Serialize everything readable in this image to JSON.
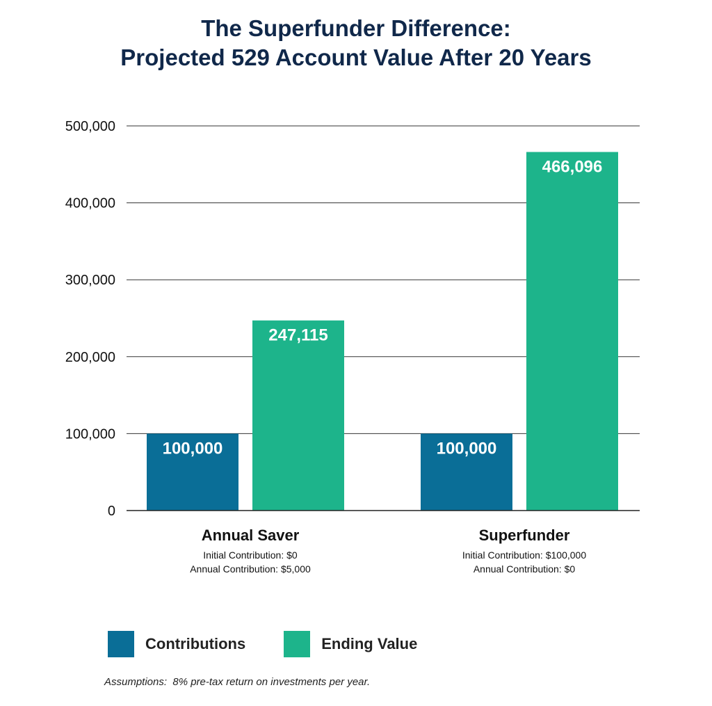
{
  "title_line1": "The Superfunder Difference:",
  "title_line2": "Projected 529 Account Value After 20 Years",
  "chart_data": {
    "type": "bar",
    "categories": [
      "Annual Saver",
      "Superfunder"
    ],
    "category_details": [
      [
        "Initial Contribution: $0",
        "Annual Contribution: $5,000"
      ],
      [
        "Initial Contribution: $100,000",
        "Annual Contribution: $0"
      ]
    ],
    "series": [
      {
        "name": "Contributions",
        "color": "#0a6e97",
        "values": [
          100000,
          100000
        ],
        "labels": [
          "100,000",
          "100,000"
        ]
      },
      {
        "name": "Ending Value",
        "color": "#1db48b",
        "values": [
          247115,
          466096
        ],
        "labels": [
          "247,115",
          "466,096"
        ]
      }
    ],
    "ylim": [
      0,
      500000
    ],
    "yticks": [
      0,
      100000,
      200000,
      300000,
      400000,
      500000
    ],
    "ytick_labels": [
      "0",
      "100,000",
      "200,000",
      "300,000",
      "400,000",
      "500,000"
    ],
    "grid": true,
    "legend_position": "bottom-left"
  },
  "legend": [
    {
      "label": "Contributions",
      "color": "#0a6e97"
    },
    {
      "label": "Ending Value",
      "color": "#1db48b"
    }
  ],
  "assumptions": "Assumptions:  8% pre-tax return on investments per year."
}
